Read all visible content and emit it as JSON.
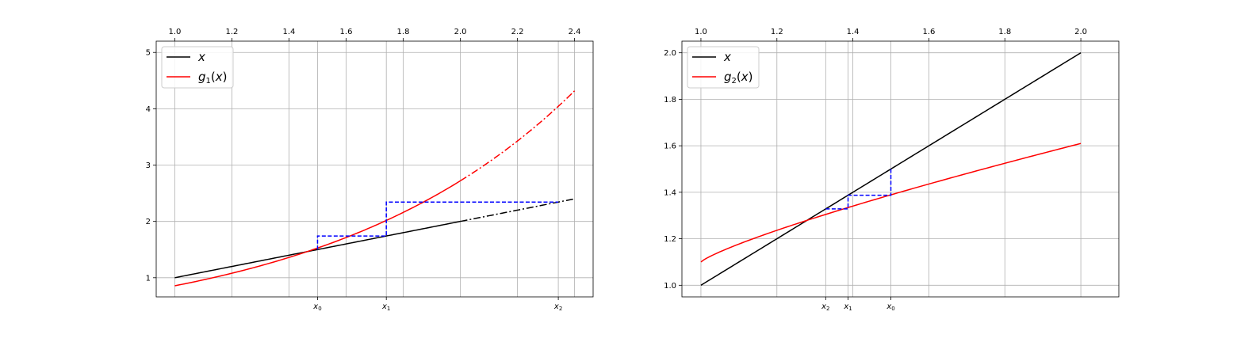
{
  "chart_data": [
    {
      "type": "line",
      "title": "",
      "x_ticks_top": [
        "1.0",
        "1.2",
        "1.4",
        "1.6",
        "1.8",
        "2.0",
        "2.2",
        "2.4"
      ],
      "x_tick_values": [
        1.0,
        1.2,
        1.4,
        1.6,
        1.8,
        2.0,
        2.2,
        2.4
      ],
      "y_ticks": [
        "1",
        "2",
        "3",
        "4",
        "5"
      ],
      "y_tick_values": [
        1,
        2,
        3,
        4,
        5
      ],
      "xlim": [
        0.935,
        2.465
      ],
      "ylim": [
        0.66,
        5.2
      ],
      "grid": true,
      "legend_position": "top-left",
      "iterate_ticks": [
        {
          "x": 1.5,
          "label": "x",
          "sub": "0"
        },
        {
          "x": 1.7408,
          "label": "x",
          "sub": "1"
        },
        {
          "x": 2.3431,
          "label": "x",
          "sub": "2"
        }
      ],
      "series": [
        {
          "name": "x",
          "name_math": "x",
          "color": "#000000",
          "function": "identity",
          "solid_range": [
            1.0,
            2.0
          ],
          "dashdot_range": [
            2.0,
            2.4
          ]
        },
        {
          "name": "g",
          "name_sub": "1",
          "name_suffix": "(x)",
          "color": "#ff0000",
          "function": "g1",
          "solid_range": [
            1.0,
            2.0
          ],
          "dashdot_range": [
            2.0,
            2.4
          ]
        }
      ],
      "cobweb": {
        "color": "#0000ff",
        "points": [
          [
            1.5,
            1.5
          ],
          [
            1.5,
            1.7408
          ],
          [
            1.7408,
            1.7408
          ],
          [
            1.7408,
            2.3431
          ],
          [
            2.3431,
            2.3431
          ]
        ]
      }
    },
    {
      "type": "line",
      "title": "",
      "x_ticks_top": [
        "1.0",
        "1.2",
        "1.4",
        "1.6",
        "1.8",
        "2.0"
      ],
      "x_tick_values": [
        1.0,
        1.2,
        1.4,
        1.6,
        1.8,
        2.0
      ],
      "y_ticks": [
        "1.0",
        "1.2",
        "1.4",
        "1.6",
        "1.8",
        "2.0"
      ],
      "y_tick_values": [
        1.0,
        1.2,
        1.4,
        1.6,
        1.8,
        2.0
      ],
      "xlim": [
        0.95,
        2.1
      ],
      "ylim": [
        0.95,
        2.05
      ],
      "grid": true,
      "legend_position": "top-left",
      "iterate_ticks": [
        {
          "x": 1.3284,
          "label": "x",
          "sub": "2"
        },
        {
          "x": 1.3873,
          "label": "x",
          "sub": "1"
        },
        {
          "x": 1.5,
          "label": "x",
          "sub": "0"
        }
      ],
      "series": [
        {
          "name": "x",
          "name_math": "x",
          "color": "#000000",
          "function": "identity",
          "solid_range": [
            1.0,
            2.0
          ]
        },
        {
          "name": "g",
          "name_sub": "2",
          "name_suffix": "(x)",
          "color": "#ff0000",
          "function": "g2",
          "solid_range": [
            1.0,
            2.0
          ]
        }
      ],
      "cobweb": {
        "color": "#0000ff",
        "points": [
          [
            1.5,
            1.5
          ],
          [
            1.5,
            1.3873
          ],
          [
            1.3873,
            1.3873
          ],
          [
            1.3873,
            1.3284
          ],
          [
            1.3284,
            1.3284
          ]
        ]
      }
    }
  ]
}
